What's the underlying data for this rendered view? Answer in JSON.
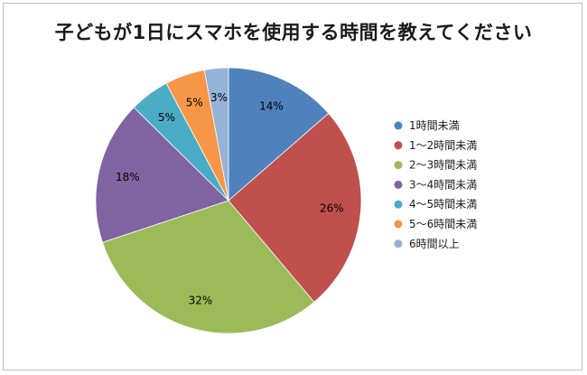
{
  "chart_data": {
    "type": "pie",
    "title": "子どもが1日にスマホを使用する時間を教えてください",
    "categories": [
      "1時間未満",
      "1～2時間未満",
      "2～3時間未満",
      "3～4時間未満",
      "4～5時間未満",
      "5～6時間未満",
      "6時間以上"
    ],
    "values": [
      14,
      26,
      32,
      18,
      5,
      5,
      3
    ],
    "value_labels": [
      "14%",
      "26%",
      "32%",
      "18%",
      "5%",
      "5%",
      "3%"
    ],
    "colors": [
      "#4f81bd",
      "#c0504d",
      "#9bbb59",
      "#8064a2",
      "#4bacc6",
      "#f79646",
      "#95b3d7"
    ],
    "legend_position": "right",
    "start_angle": "12 o'clock, clockwise"
  }
}
